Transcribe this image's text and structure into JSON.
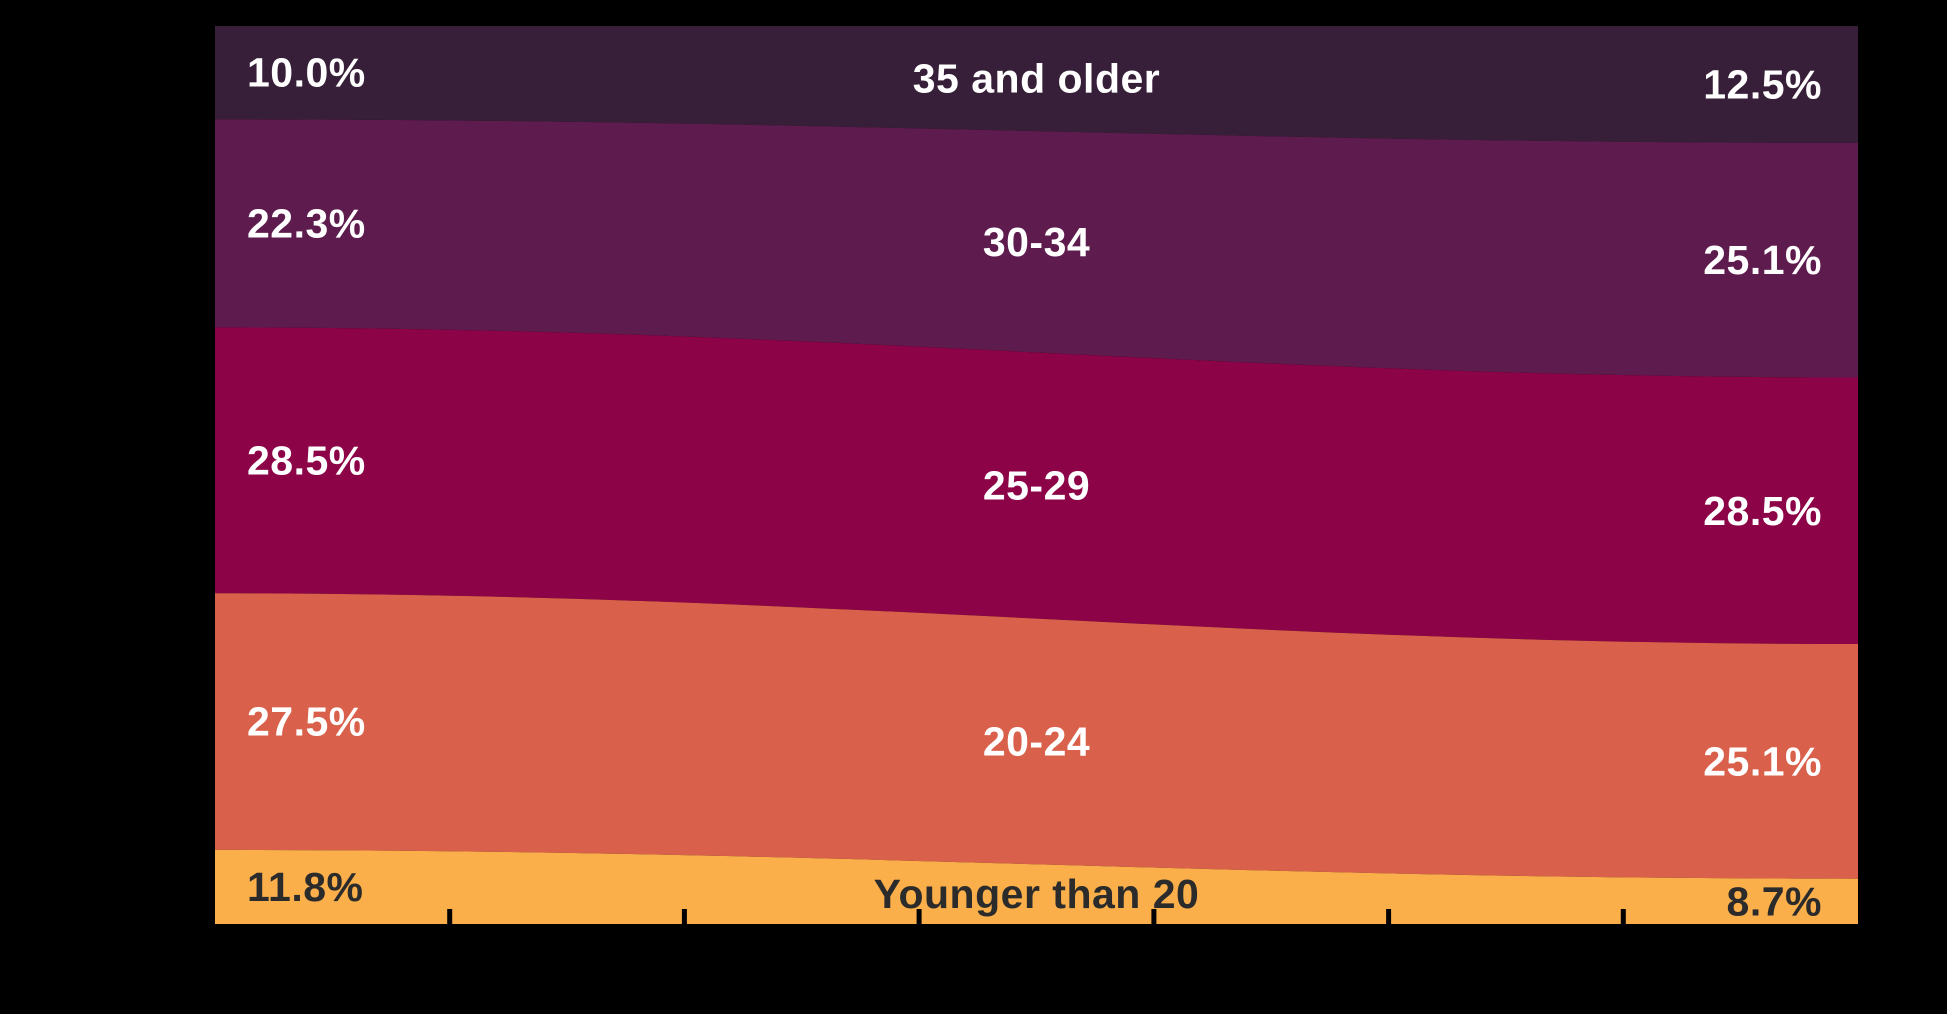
{
  "chart_data": {
    "type": "area",
    "subtype": "stacked-100-percent",
    "background": "#000000",
    "title": "",
    "xlabel": "",
    "ylabel": "",
    "x_tick_labels_visible": false,
    "y_axis_visible": false,
    "series": [
      {
        "name": "35 and older",
        "values": [
          10.0,
          12.5
        ],
        "color": "#371f39",
        "label_color": "#ffffff"
      },
      {
        "name": "30-34",
        "values": [
          22.3,
          25.1
        ],
        "color": "#5e1b4e",
        "label_color": "#ffffff"
      },
      {
        "name": "25-29",
        "values": [
          28.5,
          28.5
        ],
        "color": "#8c0348",
        "label_color": "#ffffff"
      },
      {
        "name": "20-24",
        "values": [
          27.5,
          25.1
        ],
        "color": "#d9604a",
        "label_color": "#ffffff"
      },
      {
        "name": "Younger than 20",
        "values": [
          11.8,
          8.7
        ],
        "color": "#fbaf4b",
        "label_color": "#2b2b2b"
      }
    ],
    "left_labels": [
      "10.0%",
      "22.3%",
      "28.5%",
      "27.5%",
      "11.8%"
    ],
    "right_labels": [
      "12.5%",
      "25.1%",
      "28.5%",
      "25.1%",
      "8.7%"
    ],
    "unit": "%",
    "axis": {
      "tick_count": 6,
      "tick_color": "#000000",
      "position": "bottom"
    },
    "legend_position": "in-band-center"
  }
}
